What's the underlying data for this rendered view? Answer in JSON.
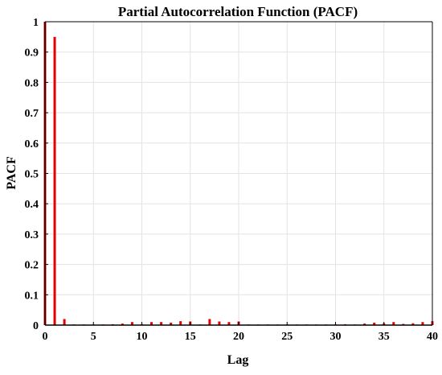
{
  "chart_data": {
    "type": "bar",
    "title": "Partial Autocorrelation Function (PACF)",
    "xlabel": "Lag",
    "ylabel": "PACF",
    "xlim": [
      0,
      40
    ],
    "ylim": [
      0,
      1
    ],
    "grid": true,
    "bar_color": "#e60000",
    "x_ticks": [
      0,
      5,
      10,
      15,
      20,
      25,
      30,
      35,
      40
    ],
    "x_tick_labels": [
      "0",
      "5",
      "10",
      "15",
      "20",
      "25",
      "30",
      "35",
      "40"
    ],
    "y_ticks": [
      0,
      0.1,
      0.2,
      0.3,
      0.4,
      0.5,
      0.6,
      0.7,
      0.8,
      0.9,
      1
    ],
    "y_tick_labels": [
      "0",
      "0.1",
      "0.2",
      "0.3",
      "0.4",
      "0.5",
      "0.6",
      "0.7",
      "0.8",
      "0.9",
      "1"
    ],
    "x": [
      0,
      1,
      2,
      3,
      4,
      5,
      6,
      7,
      8,
      9,
      10,
      11,
      12,
      13,
      14,
      15,
      16,
      17,
      18,
      19,
      20,
      21,
      22,
      23,
      24,
      25,
      26,
      27,
      28,
      29,
      30,
      31,
      32,
      33,
      34,
      35,
      36,
      37,
      38,
      39,
      40
    ],
    "values": [
      1.0,
      0.95,
      0.02,
      0.002,
      0.001,
      0.002,
      0.001,
      0.003,
      0.005,
      0.01,
      0.003,
      0.01,
      0.01,
      0.008,
      0.013,
      0.012,
      0.002,
      0.02,
      0.012,
      0.01,
      0.012,
      0.002,
      0.001,
      0.002,
      0.001,
      0.002,
      0.001,
      0.001,
      0.002,
      0.001,
      0.002,
      0.003,
      0.002,
      0.005,
      0.008,
      0.006,
      0.01,
      0.004,
      0.006,
      0.01,
      0.013
    ]
  }
}
